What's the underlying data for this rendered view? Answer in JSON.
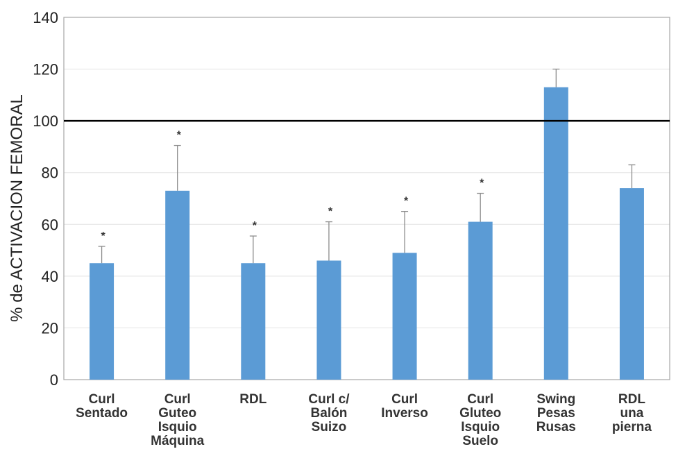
{
  "chart_data": {
    "type": "bar",
    "ylabel": "% de ACTIVACION FEMORAL",
    "ylim": [
      0,
      140
    ],
    "yticks": [
      "0",
      "20",
      "40",
      "60",
      "80",
      "100",
      "120",
      "140"
    ],
    "reference_line": 100,
    "grid": true,
    "bar_color": "#5B9BD5",
    "categories": [
      [
        "Curl",
        "Sentado"
      ],
      [
        "Curl",
        "Guteo",
        "Isquio",
        "Máquina"
      ],
      [
        "RDL"
      ],
      [
        "Curl c/",
        "Balón",
        "Suizo"
      ],
      [
        "Curl",
        "Inverso"
      ],
      [
        "Curl",
        "Gluteo",
        "Isquio",
        "Suelo"
      ],
      [
        "Swing",
        "Pesas",
        "Rusas"
      ],
      [
        "RDL",
        "una",
        "pierna"
      ]
    ],
    "values": [
      45,
      73,
      45,
      46,
      49,
      61,
      113,
      74
    ],
    "error_upper": [
      51.5,
      90.5,
      55.5,
      61,
      65,
      72,
      120,
      83
    ],
    "significance": [
      "*",
      "*",
      "*",
      "*",
      "*",
      "*",
      "",
      ""
    ]
  }
}
